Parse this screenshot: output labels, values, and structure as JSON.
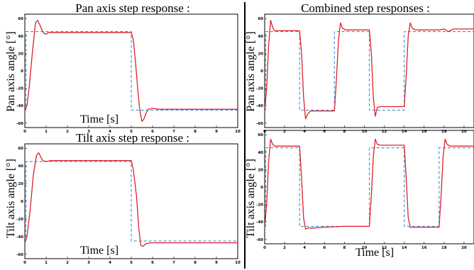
{
  "colors": {
    "response": "#e0202a",
    "reference": "#3a8fd6"
  },
  "chart_data": [
    {
      "type": "line",
      "title": "Pan axis step response :",
      "xlabel": "Time [s]",
      "ylabel": "Pan axis angle [°]",
      "xlim": [
        0,
        10
      ],
      "ylim": [
        -65,
        65
      ],
      "xticks": [
        0,
        1,
        2,
        3,
        4,
        5,
        6,
        7,
        8,
        9,
        10
      ],
      "yticks": [
        -60,
        -40,
        -20,
        0,
        20,
        40,
        60
      ],
      "series": [
        {
          "role": "reference",
          "style": "dashed",
          "x": [
            0,
            0.05,
            0.05,
            5.0,
            5.0,
            10
          ],
          "y": [
            -45,
            -45,
            45,
            45,
            -45,
            -45
          ]
        },
        {
          "role": "response",
          "style": "solid",
          "x": [
            0,
            0.1,
            0.2,
            0.35,
            0.5,
            0.6,
            0.7,
            0.8,
            0.9,
            1.0,
            1.1,
            1.3,
            1.6,
            2.0,
            3.0,
            4.5,
            5.0,
            5.1,
            5.2,
            5.3,
            5.4,
            5.5,
            5.6,
            5.7,
            5.8,
            6.0,
            6.3,
            7.0,
            8.0,
            10.0
          ],
          "y": [
            -45,
            -40,
            -20,
            20,
            55,
            58,
            53,
            47,
            43,
            42,
            44,
            44,
            44,
            44,
            44,
            44,
            44,
            35,
            10,
            -20,
            -45,
            -58,
            -55,
            -48,
            -44,
            -43,
            -44,
            -44,
            -44,
            -44
          ]
        }
      ]
    },
    {
      "type": "line",
      "title": "Tilt axis step response :",
      "xlabel": "Time [s]",
      "ylabel": "Tilt axis angle [°]",
      "xlim": [
        0,
        10
      ],
      "ylim": [
        -65,
        65
      ],
      "xticks": [
        0,
        1,
        2,
        3,
        4,
        5,
        6,
        7,
        8,
        9,
        10
      ],
      "yticks": [
        -60,
        -40,
        -20,
        0,
        20,
        40,
        60
      ],
      "series": [
        {
          "role": "reference",
          "style": "dashed",
          "x": [
            0,
            0.05,
            0.05,
            5.0,
            5.0,
            10
          ],
          "y": [
            -45,
            -45,
            45,
            45,
            -45,
            -45
          ]
        },
        {
          "role": "response",
          "style": "solid",
          "x": [
            0,
            0.1,
            0.25,
            0.4,
            0.55,
            0.65,
            0.75,
            0.85,
            1.0,
            1.2,
            1.5,
            2.0,
            3.0,
            4.5,
            5.0,
            5.1,
            5.25,
            5.35,
            5.45,
            5.55,
            5.7,
            5.9,
            6.2,
            7.0,
            10.0
          ],
          "y": [
            -47,
            -40,
            -10,
            30,
            52,
            55,
            50,
            46,
            45,
            46,
            46,
            46,
            46,
            46,
            46,
            35,
            5,
            -30,
            -50,
            -51,
            -48,
            -47,
            -47,
            -47,
            -47
          ]
        }
      ]
    },
    {
      "type": "line",
      "title": "Combined step responses :",
      "xlabel": "",
      "ylabel": "Pan axis angle [°]",
      "xlim": [
        0,
        21
      ],
      "ylim": [
        -65,
        65
      ],
      "xticks": [
        0,
        2,
        4,
        6,
        8,
        10,
        12,
        14,
        16,
        18,
        20
      ],
      "yticks": [
        -60,
        -40,
        -20,
        0,
        20,
        40,
        60
      ],
      "series": [
        {
          "role": "reference",
          "style": "dashed",
          "x": [
            0,
            0.1,
            0.1,
            3.5,
            3.5,
            7.0,
            7.0,
            10.5,
            10.5,
            14.0,
            14.0,
            21
          ],
          "y": [
            -45,
            -45,
            45,
            45,
            -45,
            -45,
            45,
            45,
            -45,
            -45,
            45,
            45
          ]
        },
        {
          "role": "response",
          "style": "solid",
          "x": [
            0,
            0.2,
            0.4,
            0.6,
            0.8,
            1.0,
            1.3,
            2.0,
            3.5,
            3.7,
            3.9,
            4.1,
            4.3,
            4.6,
            5.0,
            7.0,
            7.2,
            7.4,
            7.6,
            7.8,
            8.1,
            8.6,
            10.5,
            10.7,
            10.9,
            11.1,
            11.3,
            11.6,
            12.5,
            14.0,
            14.2,
            14.4,
            14.6,
            14.8,
            15.1,
            15.6,
            17.5,
            18.0,
            18.4,
            19.0,
            21.0
          ],
          "y": [
            -45,
            -20,
            30,
            58,
            50,
            46,
            46,
            46,
            46,
            20,
            -30,
            -55,
            -50,
            -46,
            -46,
            -46,
            -10,
            35,
            55,
            49,
            47,
            47,
            47,
            20,
            -30,
            -52,
            -42,
            -41,
            -41,
            -41,
            -5,
            40,
            55,
            49,
            47,
            47,
            47,
            48,
            45,
            48,
            48
          ]
        }
      ]
    },
    {
      "type": "line",
      "title": "",
      "xlabel": "Time [s]",
      "ylabel": "Tilt axis angle [°]",
      "xlim": [
        0,
        21
      ],
      "ylim": [
        -65,
        65
      ],
      "xticks": [
        0,
        2,
        4,
        6,
        8,
        10,
        12,
        14,
        16,
        18,
        20
      ],
      "yticks": [
        -60,
        -40,
        -20,
        0,
        20,
        40,
        60
      ],
      "series": [
        {
          "role": "reference",
          "style": "dashed",
          "x": [
            0,
            0.1,
            0.1,
            3.5,
            3.5,
            10.5,
            10.5,
            14.0,
            14.0,
            17.5,
            17.5,
            21
          ],
          "y": [
            -45,
            -45,
            45,
            45,
            -45,
            -45,
            45,
            45,
            -45,
            -45,
            45,
            45
          ]
        },
        {
          "role": "response",
          "style": "solid",
          "x": [
            0,
            0.2,
            0.4,
            0.6,
            0.8,
            1.0,
            1.3,
            2.0,
            3.5,
            3.7,
            3.9,
            4.1,
            4.4,
            4.8,
            6.0,
            8.0,
            10.5,
            10.7,
            10.9,
            11.1,
            11.3,
            11.6,
            12.5,
            14.0,
            14.2,
            14.4,
            14.6,
            14.9,
            15.5,
            17.5,
            17.7,
            17.9,
            18.1,
            18.3,
            18.6,
            19.2,
            21.0
          ],
          "y": [
            -45,
            -20,
            30,
            55,
            49,
            47,
            47,
            47,
            47,
            10,
            -35,
            -48,
            -47,
            -47,
            -46,
            -45,
            -45,
            -10,
            35,
            55,
            49,
            48,
            48,
            48,
            10,
            -35,
            -46,
            -46,
            -46,
            -46,
            -10,
            35,
            55,
            49,
            47,
            47,
            47
          ]
        }
      ]
    }
  ]
}
